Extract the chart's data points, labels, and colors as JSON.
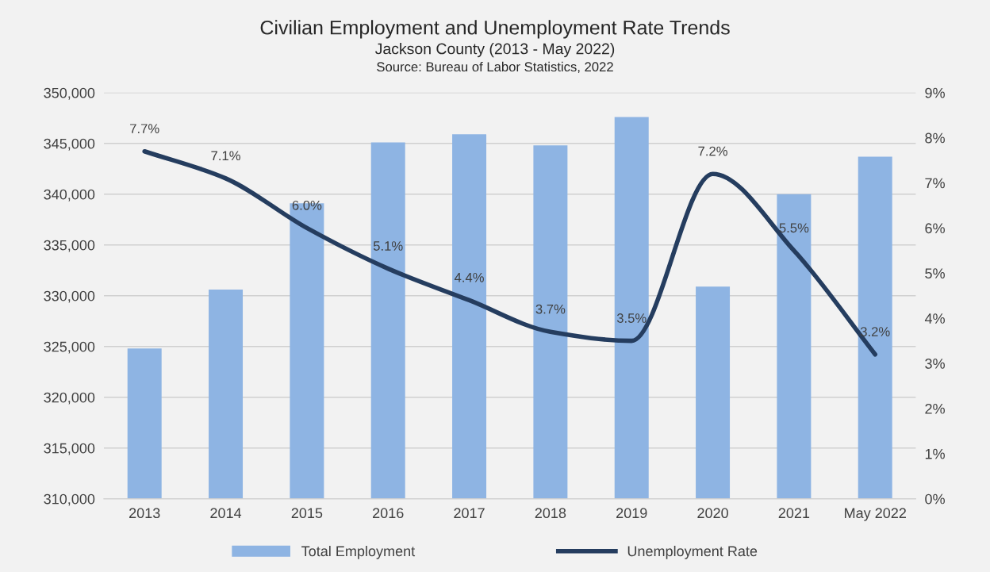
{
  "chart_data": {
    "type": "bar",
    "title": "Civilian Employment and Unemployment Rate Trends",
    "subtitle": "Jackson County (2013 - May 2022)",
    "annotations": [
      "Source: Bureau of Labor Statistics, 2022"
    ],
    "categories": [
      "2013",
      "2014",
      "2015",
      "2016",
      "2017",
      "2018",
      "2019",
      "2020",
      "2021",
      "May 2022"
    ],
    "series": [
      {
        "name": "Total Employment",
        "color": "#8eb4e3",
        "values": [
          324800,
          330600,
          339100,
          345100,
          345900,
          344800,
          347600,
          330900,
          340000,
          343700
        ]
      },
      {
        "name": "Unemployment Rate",
        "type": "line",
        "axis": "y2",
        "color": "#253d5f",
        "values": [
          7.7,
          7.1,
          6.0,
          5.1,
          4.4,
          3.7,
          3.5,
          7.2,
          5.5,
          3.2
        ],
        "value_labels": [
          "7.7%",
          "7.1%",
          "6.0%",
          "5.1%",
          "4.4%",
          "3.7%",
          "3.5%",
          "7.2%",
          "5.5%",
          "3.2%"
        ]
      }
    ],
    "ylim": [
      310000,
      350000
    ],
    "yticks": [
      {
        "value": 310000,
        "label": "310,000"
      },
      {
        "value": 315000,
        "label": "315,000"
      },
      {
        "value": 320000,
        "label": "320,000"
      },
      {
        "value": 325000,
        "label": "325,000"
      },
      {
        "value": 330000,
        "label": "330,000"
      },
      {
        "value": 335000,
        "label": "335,000"
      },
      {
        "value": 340000,
        "label": "340,000"
      },
      {
        "value": 345000,
        "label": "345,000"
      },
      {
        "value": 350000,
        "label": "350,000"
      }
    ],
    "y2lim": [
      0,
      9
    ],
    "y2ticks": [
      {
        "value": 0,
        "label": "0%"
      },
      {
        "value": 1,
        "label": "1%"
      },
      {
        "value": 2,
        "label": "2%"
      },
      {
        "value": 3,
        "label": "3%"
      },
      {
        "value": 4,
        "label": "4%"
      },
      {
        "value": 5,
        "label": "5%"
      },
      {
        "value": 6,
        "label": "6%"
      },
      {
        "value": 7,
        "label": "7%"
      },
      {
        "value": 8,
        "label": "8%"
      },
      {
        "value": 9,
        "label": "9%"
      }
    ],
    "grid": "y",
    "legend": "bottom"
  }
}
